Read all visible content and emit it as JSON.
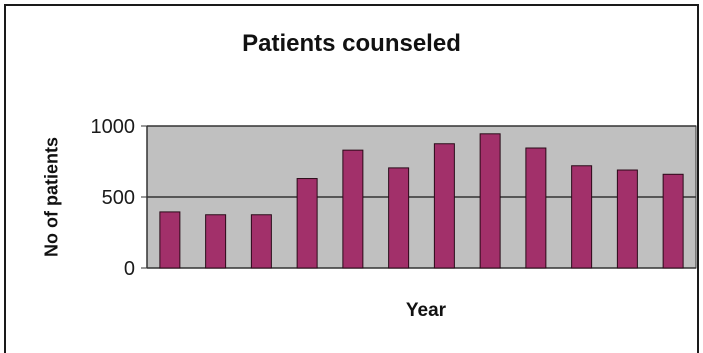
{
  "chart_data": {
    "type": "bar",
    "title": "Patients counseled",
    "xlabel": "Year",
    "ylabel": "No of patients",
    "categories": [
      "",
      "",
      "",
      "",
      "",
      "",
      "",
      "",
      "",
      "",
      "",
      ""
    ],
    "values": [
      395,
      375,
      375,
      630,
      830,
      705,
      875,
      945,
      845,
      720,
      690,
      660
    ],
    "ylim": [
      0,
      1000
    ],
    "yticks": [
      {
        "value": 0,
        "label": "0"
      },
      {
        "value": 500,
        "label": "500"
      },
      {
        "value": 1000,
        "label": "1000"
      }
    ],
    "grid": true,
    "legend": "none",
    "colors": {
      "bar": "#a2306a",
      "plot_background": "#c0c0c0",
      "gridline": "#333333"
    }
  }
}
